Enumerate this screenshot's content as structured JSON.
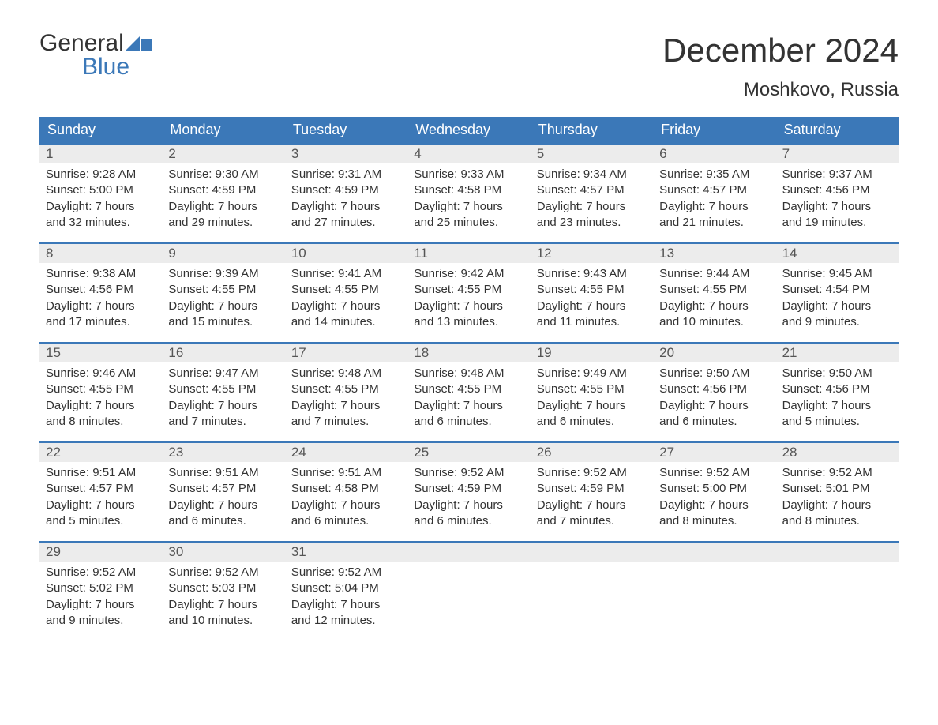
{
  "logo": {
    "word1": "General",
    "word2": "Blue",
    "icon_color": "#3b78b8"
  },
  "title": "December 2024",
  "location": "Moshkovo, Russia",
  "colors": {
    "header_bg": "#3b78b8",
    "header_text": "#ffffff",
    "daynum_bg": "#ececec",
    "daynum_text": "#555555",
    "body_text": "#333333",
    "week_border": "#3b78b8",
    "page_bg": "#ffffff"
  },
  "typography": {
    "title_fontsize": 42,
    "location_fontsize": 24,
    "dow_fontsize": 18,
    "daynum_fontsize": 17,
    "body_fontsize": 15
  },
  "dow": [
    "Sunday",
    "Monday",
    "Tuesday",
    "Wednesday",
    "Thursday",
    "Friday",
    "Saturday"
  ],
  "weeks": [
    [
      {
        "n": "1",
        "sr": "Sunrise: 9:28 AM",
        "ss": "Sunset: 5:00 PM",
        "d1": "Daylight: 7 hours",
        "d2": "and 32 minutes."
      },
      {
        "n": "2",
        "sr": "Sunrise: 9:30 AM",
        "ss": "Sunset: 4:59 PM",
        "d1": "Daylight: 7 hours",
        "d2": "and 29 minutes."
      },
      {
        "n": "3",
        "sr": "Sunrise: 9:31 AM",
        "ss": "Sunset: 4:59 PM",
        "d1": "Daylight: 7 hours",
        "d2": "and 27 minutes."
      },
      {
        "n": "4",
        "sr": "Sunrise: 9:33 AM",
        "ss": "Sunset: 4:58 PM",
        "d1": "Daylight: 7 hours",
        "d2": "and 25 minutes."
      },
      {
        "n": "5",
        "sr": "Sunrise: 9:34 AM",
        "ss": "Sunset: 4:57 PM",
        "d1": "Daylight: 7 hours",
        "d2": "and 23 minutes."
      },
      {
        "n": "6",
        "sr": "Sunrise: 9:35 AM",
        "ss": "Sunset: 4:57 PM",
        "d1": "Daylight: 7 hours",
        "d2": "and 21 minutes."
      },
      {
        "n": "7",
        "sr": "Sunrise: 9:37 AM",
        "ss": "Sunset: 4:56 PM",
        "d1": "Daylight: 7 hours",
        "d2": "and 19 minutes."
      }
    ],
    [
      {
        "n": "8",
        "sr": "Sunrise: 9:38 AM",
        "ss": "Sunset: 4:56 PM",
        "d1": "Daylight: 7 hours",
        "d2": "and 17 minutes."
      },
      {
        "n": "9",
        "sr": "Sunrise: 9:39 AM",
        "ss": "Sunset: 4:55 PM",
        "d1": "Daylight: 7 hours",
        "d2": "and 15 minutes."
      },
      {
        "n": "10",
        "sr": "Sunrise: 9:41 AM",
        "ss": "Sunset: 4:55 PM",
        "d1": "Daylight: 7 hours",
        "d2": "and 14 minutes."
      },
      {
        "n": "11",
        "sr": "Sunrise: 9:42 AM",
        "ss": "Sunset: 4:55 PM",
        "d1": "Daylight: 7 hours",
        "d2": "and 13 minutes."
      },
      {
        "n": "12",
        "sr": "Sunrise: 9:43 AM",
        "ss": "Sunset: 4:55 PM",
        "d1": "Daylight: 7 hours",
        "d2": "and 11 minutes."
      },
      {
        "n": "13",
        "sr": "Sunrise: 9:44 AM",
        "ss": "Sunset: 4:55 PM",
        "d1": "Daylight: 7 hours",
        "d2": "and 10 minutes."
      },
      {
        "n": "14",
        "sr": "Sunrise: 9:45 AM",
        "ss": "Sunset: 4:54 PM",
        "d1": "Daylight: 7 hours",
        "d2": "and 9 minutes."
      }
    ],
    [
      {
        "n": "15",
        "sr": "Sunrise: 9:46 AM",
        "ss": "Sunset: 4:55 PM",
        "d1": "Daylight: 7 hours",
        "d2": "and 8 minutes."
      },
      {
        "n": "16",
        "sr": "Sunrise: 9:47 AM",
        "ss": "Sunset: 4:55 PM",
        "d1": "Daylight: 7 hours",
        "d2": "and 7 minutes."
      },
      {
        "n": "17",
        "sr": "Sunrise: 9:48 AM",
        "ss": "Sunset: 4:55 PM",
        "d1": "Daylight: 7 hours",
        "d2": "and 7 minutes."
      },
      {
        "n": "18",
        "sr": "Sunrise: 9:48 AM",
        "ss": "Sunset: 4:55 PM",
        "d1": "Daylight: 7 hours",
        "d2": "and 6 minutes."
      },
      {
        "n": "19",
        "sr": "Sunrise: 9:49 AM",
        "ss": "Sunset: 4:55 PM",
        "d1": "Daylight: 7 hours",
        "d2": "and 6 minutes."
      },
      {
        "n": "20",
        "sr": "Sunrise: 9:50 AM",
        "ss": "Sunset: 4:56 PM",
        "d1": "Daylight: 7 hours",
        "d2": "and 6 minutes."
      },
      {
        "n": "21",
        "sr": "Sunrise: 9:50 AM",
        "ss": "Sunset: 4:56 PM",
        "d1": "Daylight: 7 hours",
        "d2": "and 5 minutes."
      }
    ],
    [
      {
        "n": "22",
        "sr": "Sunrise: 9:51 AM",
        "ss": "Sunset: 4:57 PM",
        "d1": "Daylight: 7 hours",
        "d2": "and 5 minutes."
      },
      {
        "n": "23",
        "sr": "Sunrise: 9:51 AM",
        "ss": "Sunset: 4:57 PM",
        "d1": "Daylight: 7 hours",
        "d2": "and 6 minutes."
      },
      {
        "n": "24",
        "sr": "Sunrise: 9:51 AM",
        "ss": "Sunset: 4:58 PM",
        "d1": "Daylight: 7 hours",
        "d2": "and 6 minutes."
      },
      {
        "n": "25",
        "sr": "Sunrise: 9:52 AM",
        "ss": "Sunset: 4:59 PM",
        "d1": "Daylight: 7 hours",
        "d2": "and 6 minutes."
      },
      {
        "n": "26",
        "sr": "Sunrise: 9:52 AM",
        "ss": "Sunset: 4:59 PM",
        "d1": "Daylight: 7 hours",
        "d2": "and 7 minutes."
      },
      {
        "n": "27",
        "sr": "Sunrise: 9:52 AM",
        "ss": "Sunset: 5:00 PM",
        "d1": "Daylight: 7 hours",
        "d2": "and 8 minutes."
      },
      {
        "n": "28",
        "sr": "Sunrise: 9:52 AM",
        "ss": "Sunset: 5:01 PM",
        "d1": "Daylight: 7 hours",
        "d2": "and 8 minutes."
      }
    ],
    [
      {
        "n": "29",
        "sr": "Sunrise: 9:52 AM",
        "ss": "Sunset: 5:02 PM",
        "d1": "Daylight: 7 hours",
        "d2": "and 9 minutes."
      },
      {
        "n": "30",
        "sr": "Sunrise: 9:52 AM",
        "ss": "Sunset: 5:03 PM",
        "d1": "Daylight: 7 hours",
        "d2": "and 10 minutes."
      },
      {
        "n": "31",
        "sr": "Sunrise: 9:52 AM",
        "ss": "Sunset: 5:04 PM",
        "d1": "Daylight: 7 hours",
        "d2": "and 12 minutes."
      },
      {
        "n": "",
        "sr": "",
        "ss": "",
        "d1": "",
        "d2": ""
      },
      {
        "n": "",
        "sr": "",
        "ss": "",
        "d1": "",
        "d2": ""
      },
      {
        "n": "",
        "sr": "",
        "ss": "",
        "d1": "",
        "d2": ""
      },
      {
        "n": "",
        "sr": "",
        "ss": "",
        "d1": "",
        "d2": ""
      }
    ]
  ]
}
